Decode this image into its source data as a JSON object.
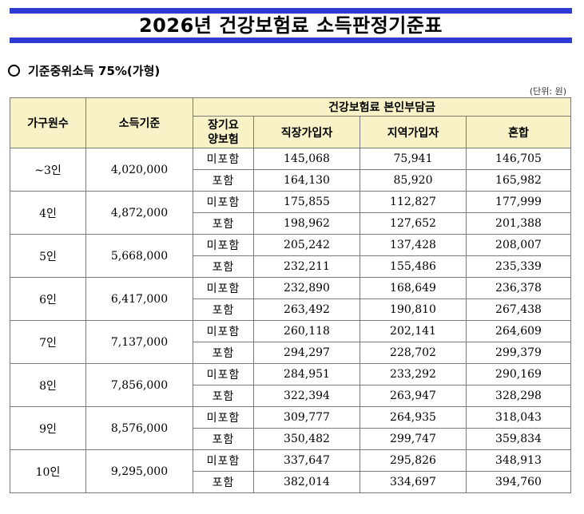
{
  "title": "2026년  건강보험료  소득판정기준표",
  "subtitle": "기준중위소득  75%(가형)",
  "unit": "(단위: 원)",
  "headers": {
    "household": "가구원수",
    "income": "소득기준",
    "premium_group": "건강보험료  본인부담금",
    "ltc_line1": "장기요",
    "ltc_line2": "양보험",
    "workplace": "직장가입자",
    "regional": "지역가입자",
    "mixed": "혼합"
  },
  "colors": {
    "title_bar": "#2e3ad1",
    "header_bg": "#f8f2c6"
  },
  "rows": [
    {
      "household": "~3인",
      "income": "4,020,000",
      "excl": {
        "label": "미포함",
        "workplace": "145,068",
        "regional": "75,941",
        "mixed": "146,705"
      },
      "incl": {
        "label": "포함",
        "workplace": "164,130",
        "regional": "85,920",
        "mixed": "165,982"
      }
    },
    {
      "household": "4인",
      "income": "4,872,000",
      "excl": {
        "label": "미포함",
        "workplace": "175,855",
        "regional": "112,827",
        "mixed": "177,999"
      },
      "incl": {
        "label": "포함",
        "workplace": "198,962",
        "regional": "127,652",
        "mixed": "201,388"
      }
    },
    {
      "household": "5인",
      "income": "5,668,000",
      "excl": {
        "label": "미포함",
        "workplace": "205,242",
        "regional": "137,428",
        "mixed": "208,007"
      },
      "incl": {
        "label": "포함",
        "workplace": "232,211",
        "regional": "155,486",
        "mixed": "235,339"
      }
    },
    {
      "household": "6인",
      "income": "6,417,000",
      "excl": {
        "label": "미포함",
        "workplace": "232,890",
        "regional": "168,649",
        "mixed": "236,378"
      },
      "incl": {
        "label": "포함",
        "workplace": "263,492",
        "regional": "190,810",
        "mixed": "267,438"
      }
    },
    {
      "household": "7인",
      "income": "7,137,000",
      "excl": {
        "label": "미포함",
        "workplace": "260,118",
        "regional": "202,141",
        "mixed": "264,609"
      },
      "incl": {
        "label": "포함",
        "workplace": "294,297",
        "regional": "228,702",
        "mixed": "299,379"
      }
    },
    {
      "household": "8인",
      "income": "7,856,000",
      "excl": {
        "label": "미포함",
        "workplace": "284,951",
        "regional": "233,292",
        "mixed": "290,169"
      },
      "incl": {
        "label": "포함",
        "workplace": "322,394",
        "regional": "263,947",
        "mixed": "328,298"
      }
    },
    {
      "household": "9인",
      "income": "8,576,000",
      "excl": {
        "label": "미포함",
        "workplace": "309,777",
        "regional": "264,935",
        "mixed": "318,043"
      },
      "incl": {
        "label": "포함",
        "workplace": "350,482",
        "regional": "299,747",
        "mixed": "359,834"
      }
    },
    {
      "household": "10인",
      "income": "9,295,000",
      "excl": {
        "label": "미포함",
        "workplace": "337,647",
        "regional": "295,826",
        "mixed": "348,913"
      },
      "incl": {
        "label": "포함",
        "workplace": "382,014",
        "regional": "334,697",
        "mixed": "394,760"
      }
    }
  ]
}
